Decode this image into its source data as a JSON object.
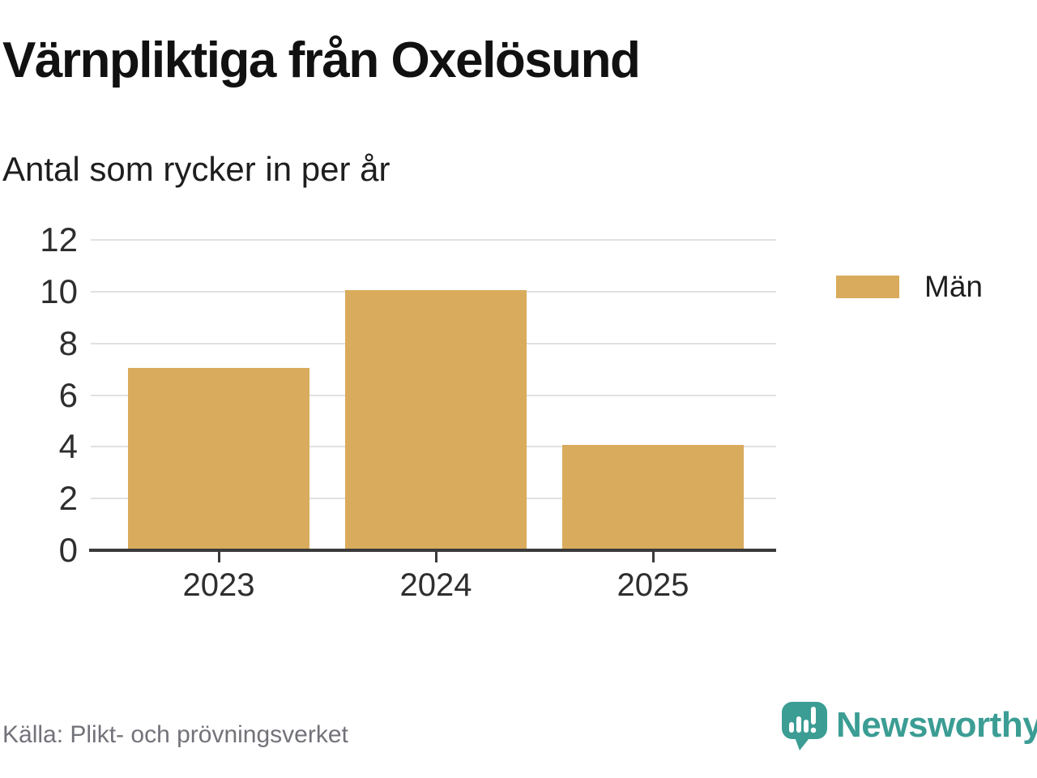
{
  "header": {
    "title": "Värnpliktiga från Oxelösund",
    "subtitle": "Antal som rycker in per år"
  },
  "chart_data": {
    "type": "bar",
    "categories": [
      "2023",
      "2024",
      "2025"
    ],
    "series": [
      {
        "name": "Män",
        "values": [
          7,
          10,
          4
        ],
        "color": "#d9ab5c"
      }
    ],
    "title": "Värnpliktiga från Oxelösund",
    "subtitle": "Antal som rycker in per år",
    "xlabel": "",
    "ylabel": "",
    "ylim": [
      0,
      12
    ],
    "ytick_step": 2,
    "grid": true,
    "legend_position": "right"
  },
  "legend": {
    "items": [
      {
        "label": "Män",
        "color": "#d9ab5c"
      }
    ]
  },
  "footer": {
    "source": "Källa: Plikt- och prövningsverket",
    "brand_name": "Newsworthy"
  },
  "icons": {
    "brand_icon": "newsworthy-speech-bubble-bar-chart"
  },
  "colors": {
    "bar": "#d9ab5c",
    "brand": "#3b9d94",
    "grid": "#e1e1e1",
    "axis": "#3a3a3a",
    "title_text": "#111111",
    "label_text": "#2e2e2e",
    "muted_text": "#72727a",
    "background": "#ffffff"
  }
}
